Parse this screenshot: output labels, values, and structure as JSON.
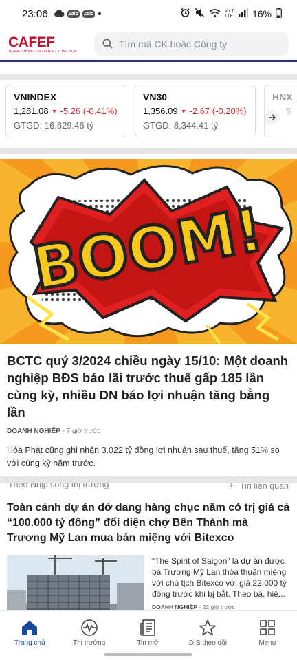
{
  "status_bar": {
    "time": "23:06",
    "zalo_1": "Zalo",
    "zalo_2": "Zalo",
    "dot": "•",
    "battery": "16%"
  },
  "header": {
    "logo": "CAFEF",
    "logo_tagline": "TRANG THÔNG TIN ĐIỆN TỬ TỔNG HỢP",
    "search_placeholder": "Tìm mã CK hoặc Công ty"
  },
  "indices": [
    {
      "name": "VNINDEX",
      "price": "1,281.08",
      "change": "-5.26 (-0.41%)",
      "volume": "GTGD: 16,629.46 tỷ"
    },
    {
      "name": "VN30",
      "price": "1,356.09",
      "change": "-2.67 (-0.20%)",
      "volume": "GTGD: 8,344.41 tỷ"
    },
    {
      "name": "HNX",
      "price": "5",
      "change": "",
      "volume": ""
    }
  ],
  "hero": {
    "text": "BOOM!"
  },
  "article1": {
    "title": "BCTC quý 3/2024 chiều ngày 15/10: Một doanh nghiệp BĐS báo lãi trước thuế gấp 185 lần cùng kỳ, nhiều DN báo lợi nhuận tăng bằng lần",
    "category": "DOANH NGHIỆP",
    "time": " - 7 giờ trước",
    "sapo": "Hòa Phát cũng ghi nhận 3.022 tỷ đồng lợi nhuận sau thuế, tăng 51% so với cùng kỳ năm trước.",
    "follow": "Theo Nhịp sống thị trường",
    "related": "Tin liên quan",
    "related_plus": "+"
  },
  "article2": {
    "title": "Toàn cảnh dự án dở dang hàng chục năm có trị giá cả “100.000 tỷ đồng” đối diện chợ Bến Thành mà Trương Mỹ Lan mua bán miệng với Bitexco",
    "sapo": "“The Spirit of Saigon” là dự án được bà Trương Mỹ Lan thỏa thuận miệng với chủ tịch Bitexco với giá 22.000 tỷ đồng trước khi bị bắt. Theo bà, hiệ...",
    "category": "DOANH NGHIỆP",
    "time": " - 22 giờ trước"
  },
  "tabbar": [
    {
      "label": "Trang chủ",
      "icon": "home-icon"
    },
    {
      "label": "Thị trường",
      "icon": "pulse-icon"
    },
    {
      "label": "Tin mới",
      "icon": "newspaper-icon"
    },
    {
      "label": "D.S theo dõi",
      "icon": "star-icon"
    },
    {
      "label": "Menu",
      "icon": "grid-icon"
    }
  ],
  "colors": {
    "brand_red": "#c8102e",
    "nav_blue": "#1a4b9c",
    "down_red": "#d32f2f",
    "header_line": "#2b2e8c"
  }
}
